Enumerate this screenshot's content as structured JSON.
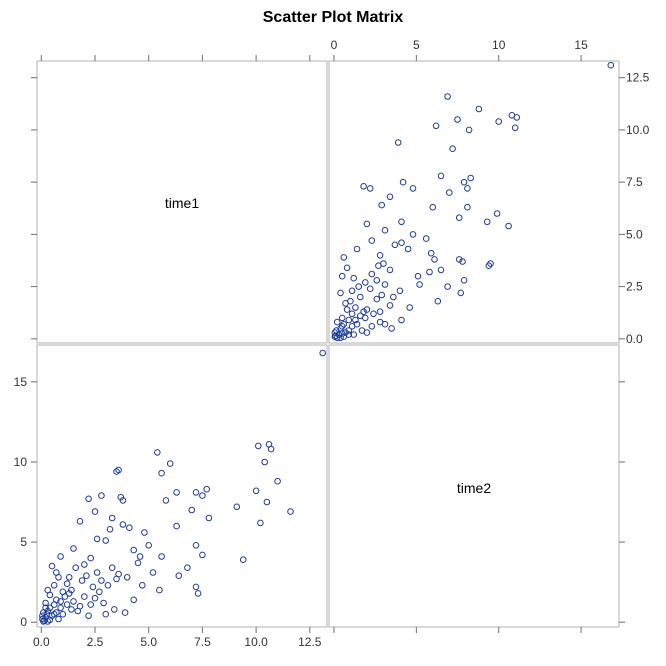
{
  "chart_data": {
    "type": "scatter",
    "subtype": "scatter-matrix",
    "title": "Scatter Plot Matrix",
    "variables": [
      "time1",
      "time2"
    ],
    "marker": {
      "shape": "open-circle",
      "color": "#1f3d99"
    },
    "panel_border_color": "#b0b0b0",
    "axes": {
      "time1": {
        "range": [
          -0.2,
          13.3
        ],
        "ticks": [
          0,
          2.5,
          5,
          7.5,
          10,
          12.5
        ],
        "tick_labels_bottom": [
          "0.0",
          "2.5",
          "5.0",
          "7.5",
          "10.0",
          "12.5"
        ],
        "tick_labels_right": [
          "0.0",
          "2.5",
          "5.0",
          "7.5",
          "10.0",
          "12.5"
        ]
      },
      "time2": {
        "range": [
          -0.3,
          17.3
        ],
        "ticks": [
          0,
          5,
          10,
          15
        ],
        "tick_labels_top": [
          "0",
          "5",
          "10",
          "15"
        ],
        "tick_labels_left": [
          "0",
          "5",
          "10",
          "15"
        ]
      }
    },
    "series": [
      {
        "x_variable": "time1",
        "y_variable": "time2",
        "points": [
          [
            13.1,
            16.8
          ],
          [
            10.1,
            11.0
          ],
          [
            10.6,
            11.1
          ],
          [
            10.7,
            10.8
          ],
          [
            10.4,
            10.0
          ],
          [
            11.0,
            8.8
          ],
          [
            10.0,
            8.2
          ],
          [
            11.6,
            6.9
          ],
          [
            10.5,
            7.5
          ],
          [
            10.2,
            6.2
          ],
          [
            9.1,
            7.2
          ],
          [
            9.4,
            3.9
          ],
          [
            7.7,
            8.3
          ],
          [
            7.5,
            7.9
          ],
          [
            7.8,
            6.5
          ],
          [
            7.2,
            8.1
          ],
          [
            7.0,
            7.0
          ],
          [
            7.2,
            4.8
          ],
          [
            7.5,
            4.2
          ],
          [
            6.0,
            9.9
          ],
          [
            5.4,
            10.6
          ],
          [
            5.6,
            9.3
          ],
          [
            6.3,
            8.1
          ],
          [
            5.8,
            7.6
          ],
          [
            6.3,
            6.0
          ],
          [
            3.6,
            9.5
          ],
          [
            3.5,
            9.4
          ],
          [
            3.7,
            7.8
          ],
          [
            3.8,
            7.6
          ],
          [
            2.8,
            7.9
          ],
          [
            2.2,
            7.7
          ],
          [
            2.5,
            6.9
          ],
          [
            3.3,
            6.5
          ],
          [
            3.8,
            6.1
          ],
          [
            4.1,
            5.9
          ],
          [
            3.2,
            5.8
          ],
          [
            3.0,
            5.1
          ],
          [
            2.6,
            5.2
          ],
          [
            1.8,
            6.3
          ],
          [
            4.3,
            4.5
          ],
          [
            4.8,
            5.6
          ],
          [
            5.0,
            4.8
          ],
          [
            5.6,
            4.1
          ],
          [
            5.2,
            3.1
          ],
          [
            4.5,
            3.7
          ],
          [
            6.8,
            3.4
          ],
          [
            6.4,
            2.9
          ],
          [
            7.2,
            2.2
          ],
          [
            7.3,
            1.8
          ],
          [
            5.5,
            2.0
          ],
          [
            4.7,
            2.3
          ],
          [
            4.0,
            2.8
          ],
          [
            4.3,
            1.4
          ],
          [
            3.5,
            2.7
          ],
          [
            3.4,
            0.8
          ],
          [
            3.9,
            0.6
          ],
          [
            2.9,
            1.2
          ],
          [
            3.0,
            0.5
          ],
          [
            2.0,
            1.6
          ],
          [
            1.8,
            1.0
          ],
          [
            2.2,
            0.4
          ],
          [
            1.3,
            1.8
          ],
          [
            1.4,
            0.8
          ],
          [
            1.2,
            2.4
          ],
          [
            1.1,
            1.6
          ],
          [
            1.6,
            3.4
          ],
          [
            1.9,
            2.6
          ],
          [
            2.6,
            3.1
          ],
          [
            3.3,
            3.4
          ],
          [
            0.5,
            3.5
          ],
          [
            0.8,
            2.8
          ],
          [
            0.9,
            4.1
          ],
          [
            1.5,
            4.6
          ],
          [
            2.3,
            4.0
          ],
          [
            0.6,
            2.3
          ],
          [
            0.4,
            1.7
          ],
          [
            0.7,
            1.4
          ],
          [
            0.3,
            2.0
          ],
          [
            0.9,
            0.9
          ],
          [
            0.6,
            1.1
          ],
          [
            1.0,
            0.5
          ],
          [
            0.3,
            0.7
          ],
          [
            0.2,
            1.2
          ],
          [
            0.5,
            0.4
          ],
          [
            0.8,
            0.2
          ],
          [
            0.4,
            0.15
          ],
          [
            0.2,
            0.3
          ],
          [
            0.1,
            0.6
          ],
          [
            0.15,
            0.1
          ],
          [
            0.3,
            0.05
          ],
          [
            0.05,
            0.2
          ],
          [
            0.7,
            0.6
          ],
          [
            1.2,
            1.1
          ],
          [
            1.5,
            1.3
          ],
          [
            2.4,
            2.2
          ],
          [
            2.7,
            1.9
          ],
          [
            3.1,
            2.3
          ],
          [
            2.1,
            2.9
          ],
          [
            0.4,
            0.9
          ],
          [
            0.6,
            0.5
          ],
          [
            1.7,
            0.7
          ],
          [
            2.5,
            1.5
          ],
          [
            0.2,
            0.9
          ],
          [
            1.0,
            1.9
          ],
          [
            1.3,
            2.8
          ],
          [
            0.7,
            3.1
          ],
          [
            2.0,
            3.6
          ],
          [
            2.8,
            2.6
          ],
          [
            3.6,
            3.0
          ],
          [
            4.6,
            4.1
          ],
          [
            0.1,
            0.05
          ],
          [
            0.05,
            0.4
          ],
          [
            0.25,
            0.5
          ],
          [
            0.9,
            1.3
          ],
          [
            1.4,
            2.0
          ],
          [
            2.3,
            1.1
          ]
        ]
      }
    ]
  }
}
